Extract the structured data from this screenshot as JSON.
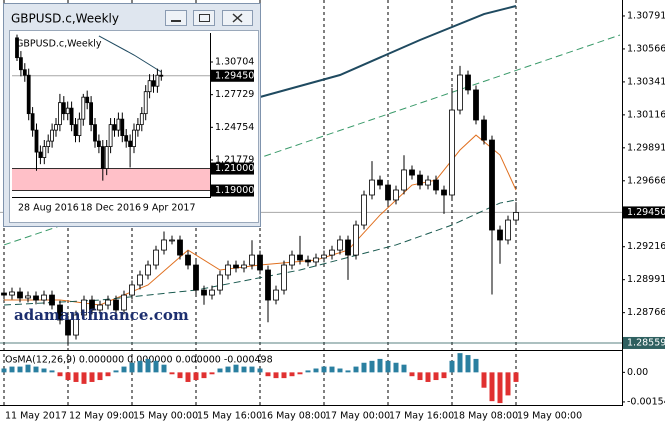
{
  "chart_data": [
    {
      "type": "candlestick",
      "categories": [
        "11 May 2017",
        null,
        null,
        null,
        null,
        null,
        null,
        null,
        "12 May 09:00",
        null,
        null,
        null,
        null,
        null,
        null,
        null,
        "15 May 00:00",
        null,
        null,
        null,
        null,
        null,
        null,
        null,
        "15 May 16:00",
        null,
        null,
        null,
        null,
        null,
        null,
        null,
        "16 May 08:00",
        null,
        null,
        null,
        null,
        null,
        null,
        null,
        "17 May 00:00",
        null,
        null,
        null,
        null,
        null,
        null,
        null,
        "17 May 16:00",
        null,
        null,
        null,
        null,
        null,
        null,
        null,
        "18 May 08:00",
        null,
        null,
        null,
        null,
        null,
        null,
        null,
        "19 May 00:00"
      ],
      "open": [
        1.289,
        1.28886,
        1.28907,
        1.28866,
        1.2888,
        1.28852,
        1.28886,
        1.28818,
        1.28716,
        1.28613,
        1.2875,
        1.28852,
        1.28784,
        1.28818,
        1.28852,
        1.28784,
        1.28886,
        1.28955,
        1.29023,
        1.29091,
        1.29193,
        1.29262,
        1.29262,
        1.29159,
        1.29091,
        1.2892,
        1.28886,
        1.2892,
        1.29023,
        1.29091,
        1.29071,
        1.29091,
        1.29159,
        1.29057,
        1.28852,
        1.2892,
        1.29091,
        1.29159,
        1.29125,
        1.29112,
        1.29139,
        1.29159,
        1.29193,
        1.29262,
        1.29159,
        1.29364,
        1.29569,
        1.29671,
        1.29637,
        1.29535,
        1.29603,
        1.2974,
        1.29705,
        1.29637,
        1.29671,
        1.29603,
        1.29569,
        1.30149,
        1.30388,
        1.30286,
        1.30081,
        1.29944,
        1.2933,
        1.29262,
        1.29398
      ],
      "high": [
        1.2893,
        1.28937,
        1.28937,
        1.2891,
        1.2891,
        1.28916,
        1.28916,
        1.28848,
        1.28746,
        1.2878,
        1.28882,
        1.28882,
        1.28848,
        1.28882,
        1.28882,
        1.28916,
        1.28985,
        1.29053,
        1.29121,
        1.29223,
        1.2932,
        1.29292,
        1.29292,
        1.29189,
        1.29121,
        1.2895,
        1.2895,
        1.29053,
        1.29121,
        1.29121,
        1.29121,
        1.2926,
        1.29189,
        1.29087,
        1.2895,
        1.29121,
        1.29189,
        1.2929,
        1.29155,
        1.29169,
        1.29189,
        1.29223,
        1.29292,
        1.29292,
        1.29394,
        1.29599,
        1.298,
        1.29701,
        1.29667,
        1.29633,
        1.2984,
        1.2977,
        1.29735,
        1.29701,
        1.29701,
        1.29633,
        1.303,
        1.3045,
        1.30418,
        1.30316,
        1.30111,
        1.29974,
        1.2936,
        1.29428,
        1.2952
      ],
      "low": [
        1.28856,
        1.28856,
        1.28836,
        1.28836,
        1.28822,
        1.28822,
        1.28788,
        1.28686,
        1.2854,
        1.28583,
        1.2872,
        1.28754,
        1.28754,
        1.28788,
        1.28754,
        1.28754,
        1.28856,
        1.28925,
        1.28993,
        1.29061,
        1.29163,
        1.29232,
        1.29129,
        1.29061,
        1.2889,
        1.2882,
        1.28856,
        1.2889,
        1.28993,
        1.29041,
        1.29041,
        1.29061,
        1.29027,
        1.287,
        1.28822,
        1.2889,
        1.29061,
        1.29095,
        1.29082,
        1.29082,
        1.29109,
        1.29129,
        1.29163,
        1.2899,
        1.29129,
        1.29334,
        1.29539,
        1.29607,
        1.29505,
        1.29505,
        1.29573,
        1.29675,
        1.29607,
        1.29607,
        1.29573,
        1.2944,
        1.29539,
        1.30119,
        1.30256,
        1.30051,
        1.29914,
        1.2889,
        1.291,
        1.29232,
        1.29368
      ],
      "close": [
        1.28886,
        1.28907,
        1.28866,
        1.2888,
        1.28852,
        1.28886,
        1.28818,
        1.28716,
        1.28613,
        1.2875,
        1.28852,
        1.28784,
        1.28818,
        1.28852,
        1.28784,
        1.28886,
        1.28955,
        1.29023,
        1.29091,
        1.29193,
        1.29262,
        1.29262,
        1.29159,
        1.29091,
        1.2892,
        1.28886,
        1.2892,
        1.29023,
        1.29091,
        1.29071,
        1.29091,
        1.29159,
        1.29057,
        1.28852,
        1.2892,
        1.29091,
        1.29159,
        1.29125,
        1.29112,
        1.29139,
        1.29159,
        1.29193,
        1.29262,
        1.29159,
        1.29364,
        1.29569,
        1.29671,
        1.29637,
        1.29535,
        1.29603,
        1.2974,
        1.29705,
        1.29637,
        1.29671,
        1.29603,
        1.29569,
        1.30149,
        1.30388,
        1.30286,
        1.30081,
        1.29944,
        1.2933,
        1.29262,
        1.29398,
        1.2945
      ],
      "lines": [
        {
          "color": "#e07020",
          "style": "solid",
          "x": [
            0,
            7,
            12,
            18,
            23,
            27,
            32,
            39,
            43,
            47,
            51,
            54,
            57,
            59,
            62,
            64
          ],
          "values": [
            1.28852,
            1.28852,
            1.28818,
            1.28955,
            1.29193,
            1.29057,
            1.29091,
            1.29125,
            1.29193,
            1.29432,
            1.29637,
            1.29671,
            1.29876,
            1.29978,
            1.29842,
            1.29603
          ]
        },
        {
          "color": "#1a5a50",
          "style": "dashed",
          "x": [
            0,
            12,
            24,
            37,
            49,
            56,
            62,
            64
          ],
          "values": [
            1.28818,
            1.28852,
            1.2892,
            1.29057,
            1.29228,
            1.29364,
            1.29514,
            1.29535
          ]
        },
        {
          "color": "#1f4a60",
          "style": "solid",
          "x": [
            32,
            42,
            52,
            60,
            64
          ],
          "values": [
            1.30238,
            1.30388,
            1.30627,
            1.30804,
            1.30859
          ]
        },
        {
          "color": "#3a9a6a",
          "style": "dashed",
          "x": [
            0,
            77
          ],
          "values": [
            1.29228,
            1.30661
          ]
        }
      ],
      "levels": [
        {
          "value": 1.2945,
          "label": "1.29450"
        },
        1.28559
      ],
      "level_colors": [
        "#000000",
        "#2f6060"
      ],
      "ylim": [
        1.28511,
        1.309
      ],
      "yticks": [
        1.30791,
        1.30566,
        1.30341,
        1.30116,
        1.29891,
        1.29666,
        1.29216,
        1.28991,
        1.28766
      ],
      "grid": true,
      "watermark": "adamantfinance.com"
    },
    {
      "type": "bar",
      "title": "OsMA(12,26,9) 0.000000 0.000000 0.000000 -0.000498",
      "values": [
        0.0002,
        0.0003,
        0.0003,
        0.0004,
        0.0003,
        0.0002,
        0.0001,
        -0.0002,
        -0.0004,
        -0.0005,
        -0.0006,
        -0.0005,
        -0.0004,
        -0.0002,
        0.0001,
        0.0003,
        0.0005,
        0.0006,
        0.0007,
        0.0006,
        0.0004,
        -0.0001,
        -0.0003,
        -0.0005,
        -0.0004,
        -0.0003,
        -0.0001,
        0.0002,
        0.0003,
        0.0004,
        0.0003,
        0.0003,
        0.0002,
        -0.0002,
        -0.0003,
        -0.0003,
        -0.0002,
        -0.0001,
        0.0001,
        0.0002,
        0.0003,
        0.0003,
        0.0002,
        0.0001,
        0.0003,
        0.0005,
        0.0006,
        0.0007,
        0.0006,
        0.0005,
        0.0004,
        -0.0002,
        -0.0004,
        -0.0005,
        -0.0004,
        -0.0003,
        0.0006,
        0.001,
        0.0009,
        0.0007,
        -0.0008,
        -0.0015,
        -0.0016,
        -0.0012,
        -0.000498
      ],
      "positive_color": "#2a7fa0",
      "negative_color": "#e03030",
      "ylim": [
        -0.0017,
        0.00106
      ],
      "yticks": [
        {
          "value": 0,
          "label": "0.00"
        },
        -0.00154
      ]
    },
    {
      "type": "candlestick",
      "window_title": "GBPUSD.c,Weekly",
      "title": "GBPUSD.c,Weekly",
      "categories": [
        "28 Aug 2016",
        null,
        null,
        null,
        null,
        null,
        null,
        null,
        null,
        null,
        null,
        null,
        null,
        null,
        null,
        null,
        "18 Dec 2016",
        null,
        null,
        null,
        null,
        null,
        null,
        null,
        null,
        null,
        null,
        null,
        null,
        null,
        null,
        null,
        "9 Apr 2017",
        null,
        null,
        null,
        null,
        null
      ],
      "open": [
        1.329,
        1.311,
        1.3,
        1.295,
        1.26,
        1.245,
        1.225,
        1.22,
        1.23,
        1.235,
        1.245,
        1.25,
        1.27,
        1.26,
        1.265,
        1.25,
        1.24,
        1.255,
        1.275,
        1.27,
        1.25,
        1.235,
        1.23,
        1.21,
        1.23,
        1.25,
        1.245,
        1.255,
        1.24,
        1.235,
        1.23,
        1.245,
        1.25,
        1.26,
        1.28,
        1.29,
        1.285,
        1.295
      ],
      "high": [
        1.332,
        1.317,
        1.306,
        1.301,
        1.266,
        1.251,
        1.231,
        1.236,
        1.241,
        1.251,
        1.256,
        1.278,
        1.276,
        1.271,
        1.271,
        1.256,
        1.261,
        1.278,
        1.281,
        1.276,
        1.256,
        1.241,
        1.236,
        1.236,
        1.256,
        1.256,
        1.261,
        1.261,
        1.246,
        1.241,
        1.251,
        1.256,
        1.266,
        1.286,
        1.296,
        1.296,
        1.301,
        1.3
      ],
      "low": [
        1.308,
        1.294,
        1.289,
        1.254,
        1.239,
        1.208,
        1.214,
        1.214,
        1.224,
        1.229,
        1.239,
        1.244,
        1.254,
        1.254,
        1.244,
        1.234,
        1.234,
        1.249,
        1.264,
        1.244,
        1.229,
        1.224,
        1.199,
        1.204,
        1.224,
        1.239,
        1.239,
        1.234,
        1.229,
        1.211,
        1.224,
        1.239,
        1.244,
        1.254,
        1.274,
        1.279,
        1.279,
        1.29
      ],
      "close": [
        1.311,
        1.3,
        1.295,
        1.26,
        1.245,
        1.225,
        1.22,
        1.23,
        1.235,
        1.245,
        1.25,
        1.27,
        1.26,
        1.265,
        1.25,
        1.24,
        1.255,
        1.275,
        1.27,
        1.25,
        1.235,
        1.23,
        1.21,
        1.23,
        1.25,
        1.245,
        1.255,
        1.24,
        1.235,
        1.23,
        1.245,
        1.25,
        1.26,
        1.28,
        1.29,
        1.285,
        1.295,
        1.2945
      ],
      "lines": [
        {
          "color": "#1f4a60",
          "style": "solid",
          "x": [
            21,
            30,
            37
          ],
          "values": [
            1.33072,
            1.31341,
            1.29793
          ]
        }
      ],
      "zone": [
        1.19,
        1.21
      ],
      "zone_color": "#ffc0c8",
      "levels": [
        {
          "value": 1.2945,
          "label": "1.29450"
        },
        {
          "value": 1.21,
          "label": "1.21000"
        },
        {
          "value": 1.19,
          "label": "1.19000"
        }
      ],
      "level_colors": [
        "#000000",
        "#000000",
        "#000000"
      ],
      "ylim": [
        1.18409,
        1.33345
      ],
      "yticks": [
        1.30704,
        1.27729,
        1.24754,
        1.21779
      ],
      "grid": false
    }
  ]
}
